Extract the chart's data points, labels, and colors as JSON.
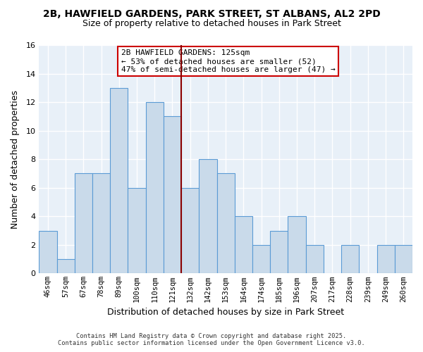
{
  "title_line1": "2B, HAWFIELD GARDENS, PARK STREET, ST ALBANS, AL2 2PD",
  "title_line2": "Size of property relative to detached houses in Park Street",
  "xlabel": "Distribution of detached houses by size in Park Street",
  "ylabel": "Number of detached properties",
  "bar_labels": [
    "46sqm",
    "57sqm",
    "67sqm",
    "78sqm",
    "89sqm",
    "100sqm",
    "110sqm",
    "121sqm",
    "132sqm",
    "142sqm",
    "153sqm",
    "164sqm",
    "174sqm",
    "185sqm",
    "196sqm",
    "207sqm",
    "217sqm",
    "228sqm",
    "239sqm",
    "249sqm",
    "260sqm"
  ],
  "bar_values": [
    3,
    1,
    7,
    7,
    13,
    6,
    12,
    11,
    6,
    8,
    7,
    4,
    2,
    3,
    4,
    2,
    0,
    2,
    0,
    2,
    2
  ],
  "bar_color": "#c9daea",
  "bar_edge_color": "#5b9bd5",
  "highlight_index": 7,
  "highlight_line_color": "#8b0000",
  "annotation_text": "2B HAWFIELD GARDENS: 125sqm\n← 53% of detached houses are smaller (52)\n47% of semi-detached houses are larger (47) →",
  "annotation_box_color": "#ffffff",
  "annotation_box_edge_color": "#cc0000",
  "ylim": [
    0,
    16
  ],
  "yticks": [
    0,
    2,
    4,
    6,
    8,
    10,
    12,
    14,
    16
  ],
  "background_color": "#ffffff",
  "plot_bg_color": "#e8f0f8",
  "grid_color": "#ffffff",
  "footer_line1": "Contains HM Land Registry data © Crown copyright and database right 2025.",
  "footer_line2": "Contains public sector information licensed under the Open Government Licence v3.0."
}
